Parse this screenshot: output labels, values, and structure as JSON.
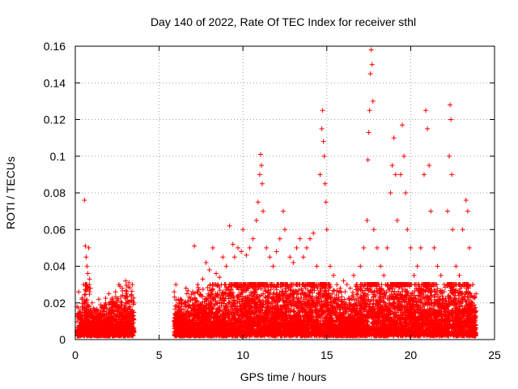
{
  "chart_data": {
    "type": "scatter",
    "title": "Day 140 of 2022, Rate Of TEC Index for receiver sthl",
    "xlabel": "GPS time / hours",
    "ylabel": "ROTI / TECUs",
    "xlim": [
      0,
      25
    ],
    "ylim": [
      0,
      0.16
    ],
    "x_ticks": [
      0,
      5,
      10,
      15,
      20,
      25
    ],
    "y_ticks": [
      0,
      0.02,
      0.04,
      0.06,
      0.08,
      0.1,
      0.12,
      0.14,
      0.16
    ],
    "x_tick_labels": [
      "0",
      "5",
      "10",
      "15",
      "20",
      "25"
    ],
    "y_tick_labels": [
      "0",
      "0.02",
      "0.04",
      "0.06",
      "0.08",
      "0.1",
      "0.12",
      "0.14",
      "0.16"
    ],
    "grid": true,
    "marker": "plus",
    "color": "#ff0000",
    "series": [
      {
        "name": "ROTI",
        "points": [
          [
            0.1,
            0.018
          ],
          [
            0.2,
            0.026
          ],
          [
            0.3,
            0.012
          ],
          [
            0.4,
            0.022
          ],
          [
            0.5,
            0.03
          ],
          [
            0.55,
            0.076
          ],
          [
            0.6,
            0.051
          ],
          [
            0.65,
            0.045
          ],
          [
            0.7,
            0.04
          ],
          [
            0.75,
            0.036
          ],
          [
            0.8,
            0.05
          ],
          [
            0.85,
            0.033
          ],
          [
            0.9,
            0.028
          ],
          [
            1.0,
            0.02
          ],
          [
            1.2,
            0.015
          ],
          [
            1.4,
            0.022
          ],
          [
            1.6,
            0.018
          ],
          [
            1.8,
            0.02
          ],
          [
            2.0,
            0.025
          ],
          [
            2.2,
            0.022
          ],
          [
            2.4,
            0.026
          ],
          [
            2.6,
            0.03
          ],
          [
            2.8,
            0.028
          ],
          [
            3.0,
            0.032
          ],
          [
            3.2,
            0.031
          ],
          [
            3.4,
            0.03
          ],
          [
            3.5,
            0.02
          ],
          [
            5.9,
            0.026
          ],
          [
            6.0,
            0.03
          ],
          [
            6.3,
            0.022
          ],
          [
            6.6,
            0.028
          ],
          [
            7.0,
            0.026
          ],
          [
            7.1,
            0.051
          ],
          [
            7.3,
            0.03
          ],
          [
            7.6,
            0.033
          ],
          [
            7.8,
            0.042
          ],
          [
            8.0,
            0.038
          ],
          [
            8.2,
            0.05
          ],
          [
            8.4,
            0.036
          ],
          [
            8.6,
            0.034
          ],
          [
            8.8,
            0.045
          ],
          [
            9.0,
            0.04
          ],
          [
            9.2,
            0.062
          ],
          [
            9.4,
            0.052
          ],
          [
            9.5,
            0.045
          ],
          [
            9.7,
            0.05
          ],
          [
            9.9,
            0.048
          ],
          [
            10.0,
            0.06
          ],
          [
            10.2,
            0.046
          ],
          [
            10.4,
            0.05
          ],
          [
            10.6,
            0.055
          ],
          [
            10.8,
            0.065
          ],
          [
            10.9,
            0.075
          ],
          [
            11.0,
            0.09
          ],
          [
            11.05,
            0.101
          ],
          [
            11.1,
            0.095
          ],
          [
            11.15,
            0.085
          ],
          [
            11.2,
            0.07
          ],
          [
            11.4,
            0.05
          ],
          [
            11.6,
            0.045
          ],
          [
            11.8,
            0.04
          ],
          [
            12.0,
            0.048
          ],
          [
            12.2,
            0.055
          ],
          [
            12.4,
            0.07
          ],
          [
            12.5,
            0.06
          ],
          [
            12.8,
            0.045
          ],
          [
            13.0,
            0.042
          ],
          [
            13.2,
            0.05
          ],
          [
            13.4,
            0.055
          ],
          [
            13.6,
            0.045
          ],
          [
            13.8,
            0.05
          ],
          [
            14.0,
            0.055
          ],
          [
            14.2,
            0.058
          ],
          [
            14.4,
            0.04
          ],
          [
            14.6,
            0.09
          ],
          [
            14.7,
            0.115
          ],
          [
            14.75,
            0.125
          ],
          [
            14.8,
            0.108
          ],
          [
            14.85,
            0.1
          ],
          [
            14.9,
            0.085
          ],
          [
            14.95,
            0.075
          ],
          [
            15.0,
            0.06
          ],
          [
            15.2,
            0.04
          ],
          [
            15.4,
            0.035
          ],
          [
            15.6,
            0.03
          ],
          [
            15.8,
            0.028
          ],
          [
            16.0,
            0.032
          ],
          [
            16.2,
            0.03
          ],
          [
            16.4,
            0.028
          ],
          [
            16.6,
            0.035
          ],
          [
            16.8,
            0.03
          ],
          [
            17.0,
            0.04
          ],
          [
            17.2,
            0.05
          ],
          [
            17.4,
            0.065
          ],
          [
            17.45,
            0.098
          ],
          [
            17.5,
            0.113
          ],
          [
            17.55,
            0.125
          ],
          [
            17.6,
            0.145
          ],
          [
            17.65,
            0.158
          ],
          [
            17.7,
            0.15
          ],
          [
            17.75,
            0.13
          ],
          [
            17.8,
            0.06
          ],
          [
            18.0,
            0.05
          ],
          [
            18.2,
            0.04
          ],
          [
            18.4,
            0.035
          ],
          [
            18.6,
            0.05
          ],
          [
            18.8,
            0.08
          ],
          [
            18.9,
            0.095
          ],
          [
            19.0,
            0.11
          ],
          [
            19.1,
            0.09
          ],
          [
            19.2,
            0.065
          ],
          [
            19.4,
            0.09
          ],
          [
            19.5,
            0.117
          ],
          [
            19.6,
            0.1
          ],
          [
            19.7,
            0.08
          ],
          [
            19.8,
            0.06
          ],
          [
            20.0,
            0.05
          ],
          [
            20.2,
            0.035
          ],
          [
            20.4,
            0.04
          ],
          [
            20.6,
            0.05
          ],
          [
            20.8,
            0.09
          ],
          [
            20.9,
            0.125
          ],
          [
            21.0,
            0.115
          ],
          [
            21.1,
            0.095
          ],
          [
            21.2,
            0.07
          ],
          [
            21.4,
            0.05
          ],
          [
            21.6,
            0.04
          ],
          [
            21.8,
            0.035
          ],
          [
            22.0,
            0.03
          ],
          [
            22.2,
            0.07
          ],
          [
            22.3,
            0.1
          ],
          [
            22.35,
            0.128
          ],
          [
            22.4,
            0.12
          ],
          [
            22.45,
            0.09
          ],
          [
            22.5,
            0.06
          ],
          [
            22.7,
            0.04
          ],
          [
            22.9,
            0.035
          ],
          [
            23.1,
            0.06
          ],
          [
            23.3,
            0.076
          ],
          [
            23.4,
            0.07
          ],
          [
            23.5,
            0.05
          ],
          [
            23.7,
            0.03
          ],
          [
            23.9,
            0.025
          ]
        ]
      }
    ]
  }
}
